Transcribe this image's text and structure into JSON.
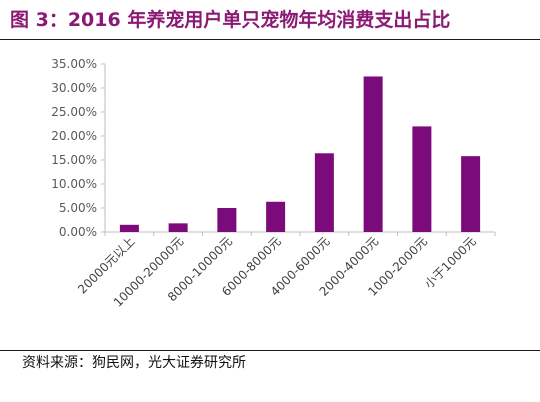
{
  "header": {
    "title": "图 3：2016 年养宠用户单只宠物年均消费支出占比"
  },
  "footer": {
    "source": "资料来源：狗民网，光大证券研究所"
  },
  "colors": {
    "bar": "#7b0a7b",
    "title": "#8a1a73",
    "axis": "#bfbfbf"
  },
  "chart_data": {
    "type": "bar",
    "title": "",
    "xlabel": "",
    "ylabel": "",
    "categories": [
      "20000元以上",
      "10000-20000元",
      "8000-10000元",
      "6000-8000元",
      "4000-6000元",
      "2000-4000元",
      "1000-2000元",
      "小于1000元"
    ],
    "values": [
      1.5,
      1.8,
      5.0,
      6.3,
      16.4,
      32.4,
      22.0,
      15.8
    ],
    "ylim": [
      0,
      35
    ],
    "yticks": [
      "0.00%",
      "5.00%",
      "10.00%",
      "15.00%",
      "20.00%",
      "25.00%",
      "30.00%",
      "35.00%"
    ],
    "grid": false,
    "legend": "none"
  }
}
